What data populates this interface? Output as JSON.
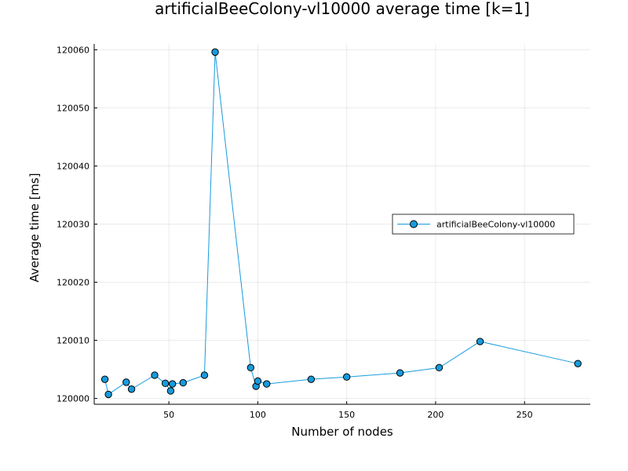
{
  "chart_data": {
    "type": "line",
    "title": "artificialBeeColony-vl10000 average time [k=1]",
    "xlabel": "Number of nodes",
    "ylabel": "Average time [ms]",
    "xlim": [
      8,
      287
    ],
    "ylim": [
      119999,
      120061
    ],
    "xticks": [
      50,
      100,
      150,
      200,
      250
    ],
    "yticks": [
      120000,
      120010,
      120020,
      120030,
      120040,
      120050,
      120060
    ],
    "grid": true,
    "legend_position": "right",
    "series": [
      {
        "name": "artificialBeeColony-vl10000",
        "color": "#179bdc",
        "marker": "circle",
        "x": [
          14,
          16,
          26,
          29,
          42,
          48,
          51,
          52,
          58,
          70,
          76,
          96,
          99,
          100,
          105,
          130,
          150,
          180,
          202,
          225,
          280
        ],
        "y": [
          120003.3,
          120000.7,
          120002.8,
          120001.6,
          120004.0,
          120002.6,
          120001.3,
          120002.5,
          120002.7,
          120004.0,
          120059.6,
          120005.3,
          120002.1,
          120003.0,
          120002.5,
          120003.3,
          120003.7,
          120004.4,
          120005.3,
          120009.8,
          120006.0
        ]
      }
    ]
  }
}
